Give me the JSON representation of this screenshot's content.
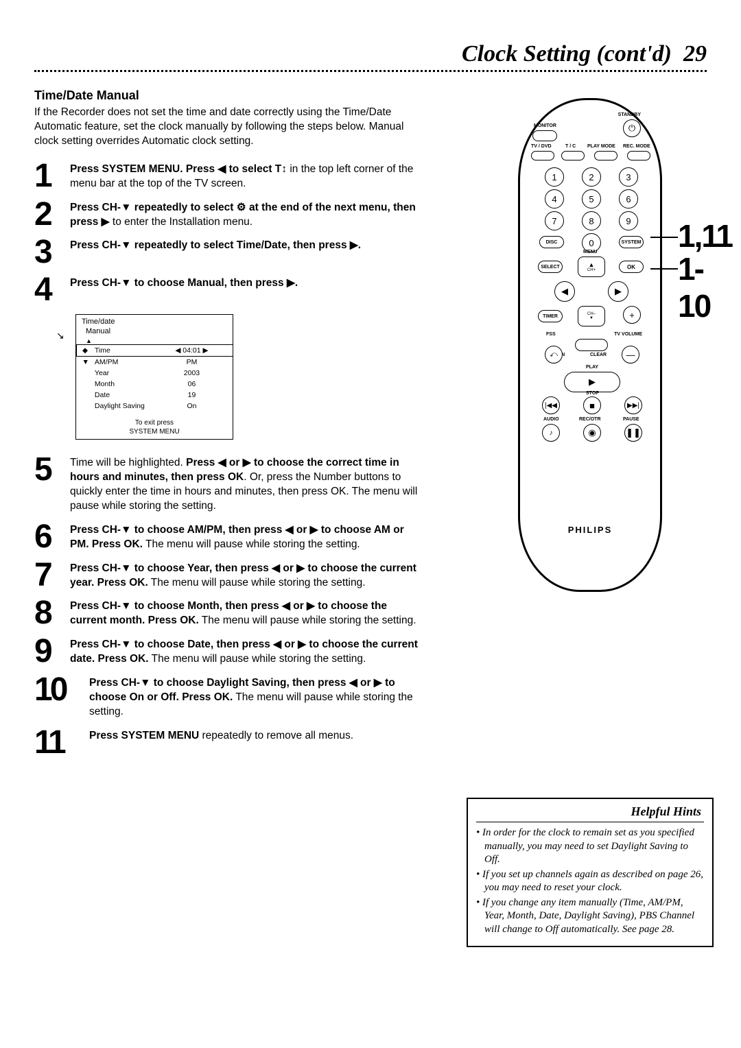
{
  "header": {
    "title": "Clock Setting (cont'd)",
    "page": "29"
  },
  "section_title": "Time/Date Manual",
  "intro": "If the Recorder does not set the time and date correctly using the Time/Date Automatic feature, set the clock manually by following the steps below. Manual clock setting overrides Automatic clock setting.",
  "steps": [
    {
      "n": "1",
      "bold": "Press SYSTEM MENU. Press ◀ to select",
      "icon": "T↕",
      "tail": " in the top left corner of the menu bar at the top of the TV screen."
    },
    {
      "n": "2",
      "bold": "Press CH-▼ repeatedly to select",
      "icon": "⚙",
      "bold2": " at the end of the next menu, then press ▶",
      "tail": " to enter the Installation menu."
    },
    {
      "n": "3",
      "bold": "Press CH-▼ repeatedly to select Time/Date, then press ▶."
    },
    {
      "n": "4",
      "bold": "Press CH-▼ to choose Manual, then press ▶."
    },
    {
      "n": "5",
      "pre": "Time will be highlighted. ",
      "bold": "Press ◀ or ▶ to choose the correct time in hours and minutes, then press OK",
      "tail": ". Or, press the Number buttons to quickly enter the time in hours and minutes, then press OK. The menu will pause while storing the setting."
    },
    {
      "n": "6",
      "bold": "Press CH-▼ to choose AM/PM, then press ◀ or ▶ to choose AM or PM. Press OK.",
      "tail": " The menu will pause while storing the setting."
    },
    {
      "n": "7",
      "bold": "Press CH-▼ to choose Year, then press ◀ or ▶ to choose the current year. Press OK.",
      "tail": " The menu will pause while storing the setting."
    },
    {
      "n": "8",
      "bold": "Press CH-▼ to choose Month, then press ◀ or ▶ to choose the current month. Press OK.",
      "tail": " The menu will pause while storing the setting."
    },
    {
      "n": "9",
      "bold": "Press CH-▼ to choose Date, then press ◀ or ▶ to choose the current date. Press OK.",
      "tail": " The menu will pause while storing the setting."
    },
    {
      "n": "10",
      "bold": "Press CH-▼ to choose Daylight Saving, then press ◀ or ▶ to choose On or Off. Press OK.",
      "tail": " The menu will pause while storing the setting."
    },
    {
      "n": "11",
      "bold": "Press SYSTEM MENU",
      "tail": " repeatedly to remove all menus."
    }
  ],
  "menu": {
    "title": "Time/date",
    "sub": "Manual",
    "rows": [
      {
        "arrow": "◆",
        "label": "Time",
        "value": "◀ 04:01 ▶",
        "hl": true
      },
      {
        "arrow": "▼",
        "label": "AM/PM",
        "value": "PM"
      },
      {
        "arrow": "",
        "label": "Year",
        "value": "2003"
      },
      {
        "arrow": "",
        "label": "Month",
        "value": "06"
      },
      {
        "arrow": "",
        "label": "Date",
        "value": "19"
      },
      {
        "arrow": "",
        "label": "Daylight Saving",
        "value": "On"
      }
    ],
    "footer1": "To exit press",
    "footer2": "SYSTEM MENU"
  },
  "remote": {
    "brand": "PHILIPS",
    "labels": {
      "standby": "STANDBY",
      "monitor": "MONITOR",
      "tvdvd": "TV / DVD",
      "tc": "T / C",
      "playmode": "PLAY MODE",
      "recmode": "REC. MODE",
      "disc": "DISC",
      "system": "SYSTEM",
      "menu": "MENU",
      "select": "SELECT",
      "ok": "OK",
      "chup": "CH+",
      "chdn": "CH–",
      "timer": "TIMER",
      "fss": "FSS",
      "tvvol": "TV VOLUME",
      "return": "RETURN",
      "clear": "CLEAR",
      "play": "PLAY",
      "stop": "STOP",
      "audio": "AUDIO",
      "pause": "PAUSE",
      "recotr": "REC/OTR"
    },
    "numbers": [
      "1",
      "2",
      "3",
      "4",
      "5",
      "6",
      "7",
      "8",
      "9",
      "0"
    ],
    "callouts": {
      "a": "1,11",
      "b": "1-10"
    }
  },
  "hints": {
    "title": "Helpful Hints",
    "items": [
      "In order for the clock to remain set as you specified manually, you may need to set Daylight Saving to Off.",
      "If you set up channels again as described on page 26, you may need to reset your clock.",
      "If you change any item manually (Time, AM/PM, Year, Month, Date, Daylight Saving), PBS Channel will change to Off automatically. See page 28."
    ]
  },
  "colors": {
    "text": "#000000",
    "bg": "#ffffff"
  }
}
